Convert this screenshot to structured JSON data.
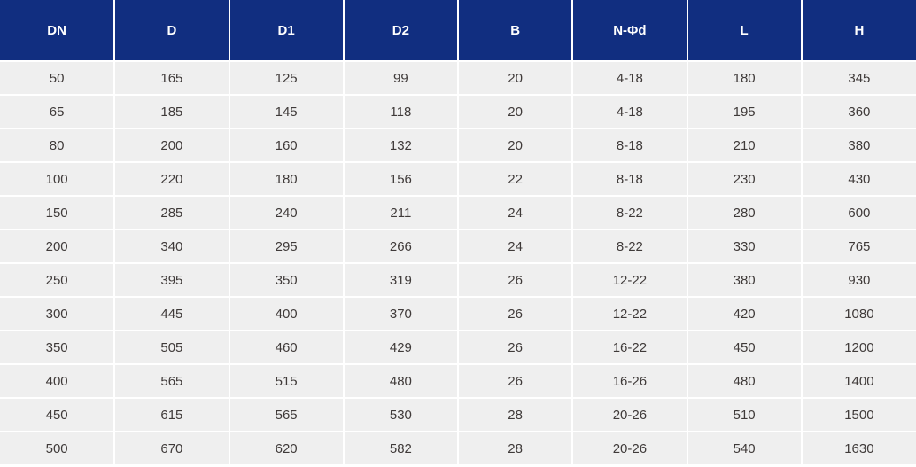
{
  "table": {
    "headers": [
      "DN",
      "D",
      "D1",
      "D2",
      "B",
      "N-Φd",
      "L",
      "H"
    ],
    "rows": [
      [
        "50",
        "165",
        "125",
        "99",
        "20",
        "4-18",
        "180",
        "345"
      ],
      [
        "65",
        "185",
        "145",
        "118",
        "20",
        "4-18",
        "195",
        "360"
      ],
      [
        "80",
        "200",
        "160",
        "132",
        "20",
        "8-18",
        "210",
        "380"
      ],
      [
        "100",
        "220",
        "180",
        "156",
        "22",
        "8-18",
        "230",
        "430"
      ],
      [
        "150",
        "285",
        "240",
        "211",
        "24",
        "8-22",
        "280",
        "600"
      ],
      [
        "200",
        "340",
        "295",
        "266",
        "24",
        "8-22",
        "330",
        "765"
      ],
      [
        "250",
        "395",
        "350",
        "319",
        "26",
        "12-22",
        "380",
        "930"
      ],
      [
        "300",
        "445",
        "400",
        "370",
        "26",
        "12-22",
        "420",
        "1080"
      ],
      [
        "350",
        "505",
        "460",
        "429",
        "26",
        "16-22",
        "450",
        "1200"
      ],
      [
        "400",
        "565",
        "515",
        "480",
        "26",
        "16-26",
        "480",
        "1400"
      ],
      [
        "450",
        "615",
        "565",
        "530",
        "28",
        "20-26",
        "510",
        "1500"
      ],
      [
        "500",
        "670",
        "620",
        "582",
        "28",
        "20-26",
        "540",
        "1630"
      ]
    ]
  },
  "colors": {
    "header_bg": "#112e80",
    "header_text": "#ffffff",
    "row_bg": "#efefef",
    "cell_text": "#3f3a39",
    "separator": "#ffffff"
  }
}
